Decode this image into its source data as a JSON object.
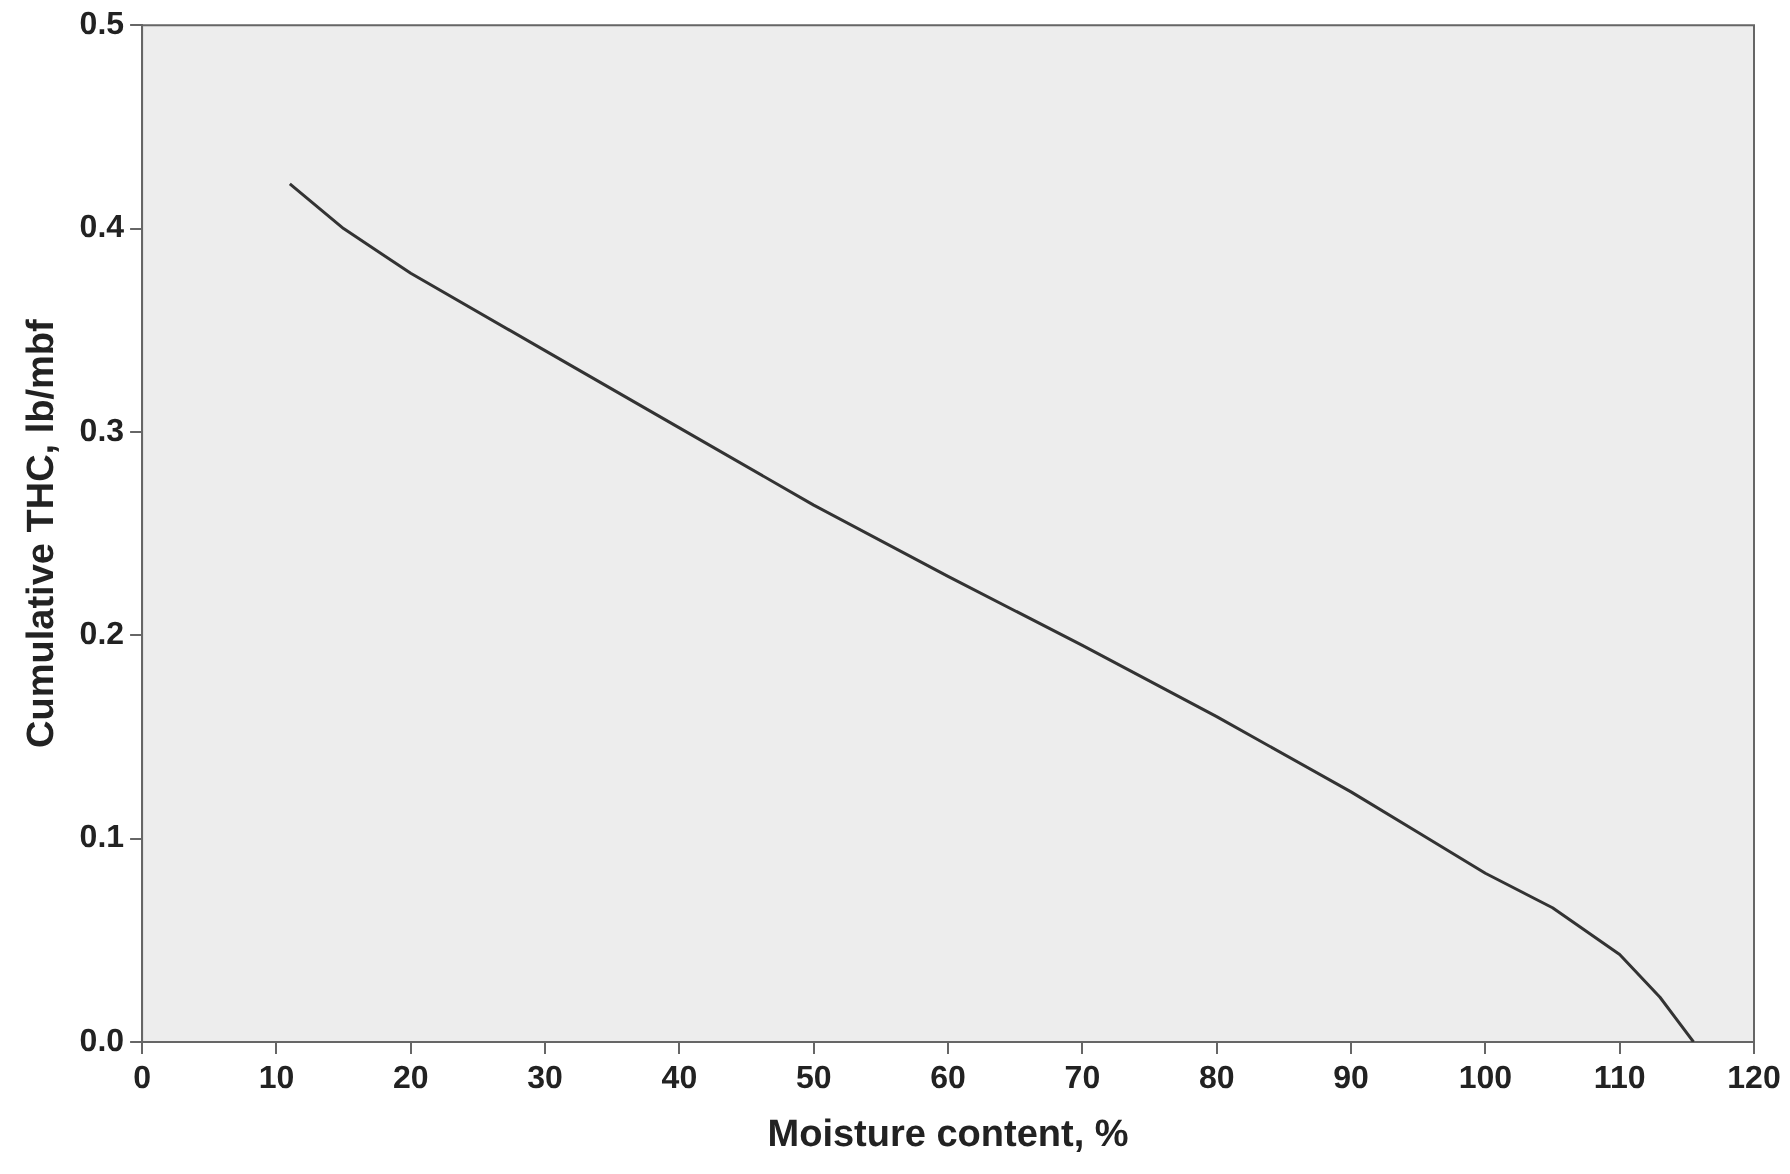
{
  "chart_data": {
    "type": "line",
    "xlabel": "Moisture content, %",
    "ylabel": "Cumulative THC, lb/mbf",
    "x": [
      11,
      15,
      20,
      30,
      40,
      50,
      60,
      70,
      80,
      90,
      95,
      100,
      105,
      110,
      113,
      115.5
    ],
    "series": [
      {
        "color": "#333333",
        "values": [
          0.422,
          0.4,
          0.378,
          0.34,
          0.302,
          0.264,
          0.229,
          0.195,
          0.16,
          0.123,
          0.103,
          0.083,
          0.066,
          0.043,
          0.022,
          0
        ]
      }
    ],
    "xlim": [
      0,
      120
    ],
    "xticks": [
      0,
      10,
      20,
      30,
      40,
      50,
      60,
      70,
      80,
      90,
      100,
      110,
      120
    ],
    "ylim": [
      0,
      0.5
    ],
    "yticks": [
      {
        "value": 0,
        "label": "0.0"
      },
      {
        "value": 0.1,
        "label": "0.1"
      },
      {
        "value": 0.2,
        "label": "0.2"
      },
      {
        "value": 0.3,
        "label": "0.3"
      },
      {
        "value": 0.4,
        "label": "0.4"
      },
      {
        "value": 0.5,
        "label": "0.5"
      }
    ],
    "grid": false,
    "legend": false,
    "marker": "none",
    "line_style": "solid"
  }
}
